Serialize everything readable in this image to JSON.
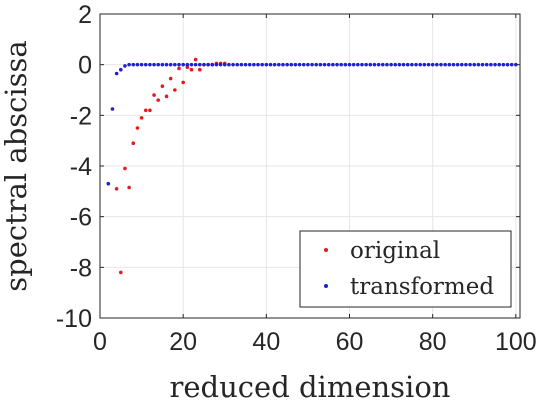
{
  "chart_data": {
    "type": "scatter",
    "title": "",
    "xlabel": "reduced dimension",
    "ylabel": "spectral abscissa",
    "xlim": [
      0,
      101
    ],
    "ylim": [
      -10,
      2
    ],
    "xticks": [
      0,
      20,
      40,
      60,
      80,
      100
    ],
    "yticks": [
      -10,
      -8,
      -6,
      -4,
      -2,
      0,
      2
    ],
    "xtick_labels": [
      "0",
      "20",
      "40",
      "60",
      "80",
      "100"
    ],
    "ytick_labels": [
      "-10",
      "-8",
      "-6",
      "-4",
      "-2",
      "0",
      "2"
    ],
    "grid": true,
    "legend_position": "bottom-right",
    "series": [
      {
        "name": "original",
        "color": "#e41a1c",
        "x": [
          4,
          5,
          6,
          7,
          8,
          9,
          10,
          11,
          12,
          13,
          14,
          15,
          16,
          17,
          18,
          19,
          20,
          21,
          22,
          23,
          24,
          25,
          26,
          27,
          28,
          29,
          30
        ],
        "y": [
          -4.9,
          -8.2,
          -4.1,
          -4.85,
          -3.1,
          -2.5,
          -2.1,
          -1.8,
          -1.8,
          -1.2,
          -1.4,
          -0.85,
          -1.25,
          -0.55,
          -1.0,
          -0.15,
          -0.7,
          -0.1,
          -0.2,
          0.2,
          -0.2,
          0.0,
          0.0,
          0.0,
          0.05,
          0.05,
          0.05
        ]
      },
      {
        "name": "transformed",
        "color": "#1f1fd6",
        "x": [
          2,
          3,
          4,
          5,
          6,
          7,
          8,
          9,
          10,
          11,
          12,
          13,
          14,
          15,
          16,
          17,
          18,
          19,
          20,
          21,
          22,
          23,
          24,
          25,
          26,
          27,
          28,
          29,
          30,
          31,
          32,
          33,
          34,
          35,
          36,
          37,
          38,
          39,
          40,
          41,
          42,
          43,
          44,
          45,
          46,
          47,
          48,
          49,
          50,
          51,
          52,
          53,
          54,
          55,
          56,
          57,
          58,
          59,
          60,
          61,
          62,
          63,
          64,
          65,
          66,
          67,
          68,
          69,
          70,
          71,
          72,
          73,
          74,
          75,
          76,
          77,
          78,
          79,
          80,
          81,
          82,
          83,
          84,
          85,
          86,
          87,
          88,
          89,
          90,
          91,
          92,
          93,
          94,
          95,
          96,
          97,
          98,
          99,
          100
        ],
        "y": [
          -4.7,
          -1.75,
          -0.35,
          -0.2,
          -0.05,
          0,
          0,
          0,
          0,
          0,
          0,
          0,
          0,
          0,
          0,
          0,
          0,
          0,
          0,
          0,
          0,
          0,
          0,
          0,
          0,
          0,
          0,
          0,
          0,
          0,
          0,
          0,
          0,
          0,
          0,
          0,
          0,
          0,
          0,
          0,
          0,
          0,
          0,
          0,
          0,
          0,
          0,
          0,
          0,
          0,
          0,
          0,
          0,
          0,
          0,
          0,
          0,
          0,
          0,
          0,
          0,
          0,
          0,
          0,
          0,
          0,
          0,
          0,
          0,
          0,
          0,
          0,
          0,
          0,
          0,
          0,
          0,
          0,
          0,
          0,
          0,
          0,
          0,
          0,
          0,
          0,
          0,
          0,
          0,
          0,
          0,
          0,
          0,
          0,
          0,
          0,
          0,
          0,
          0
        ]
      }
    ]
  }
}
